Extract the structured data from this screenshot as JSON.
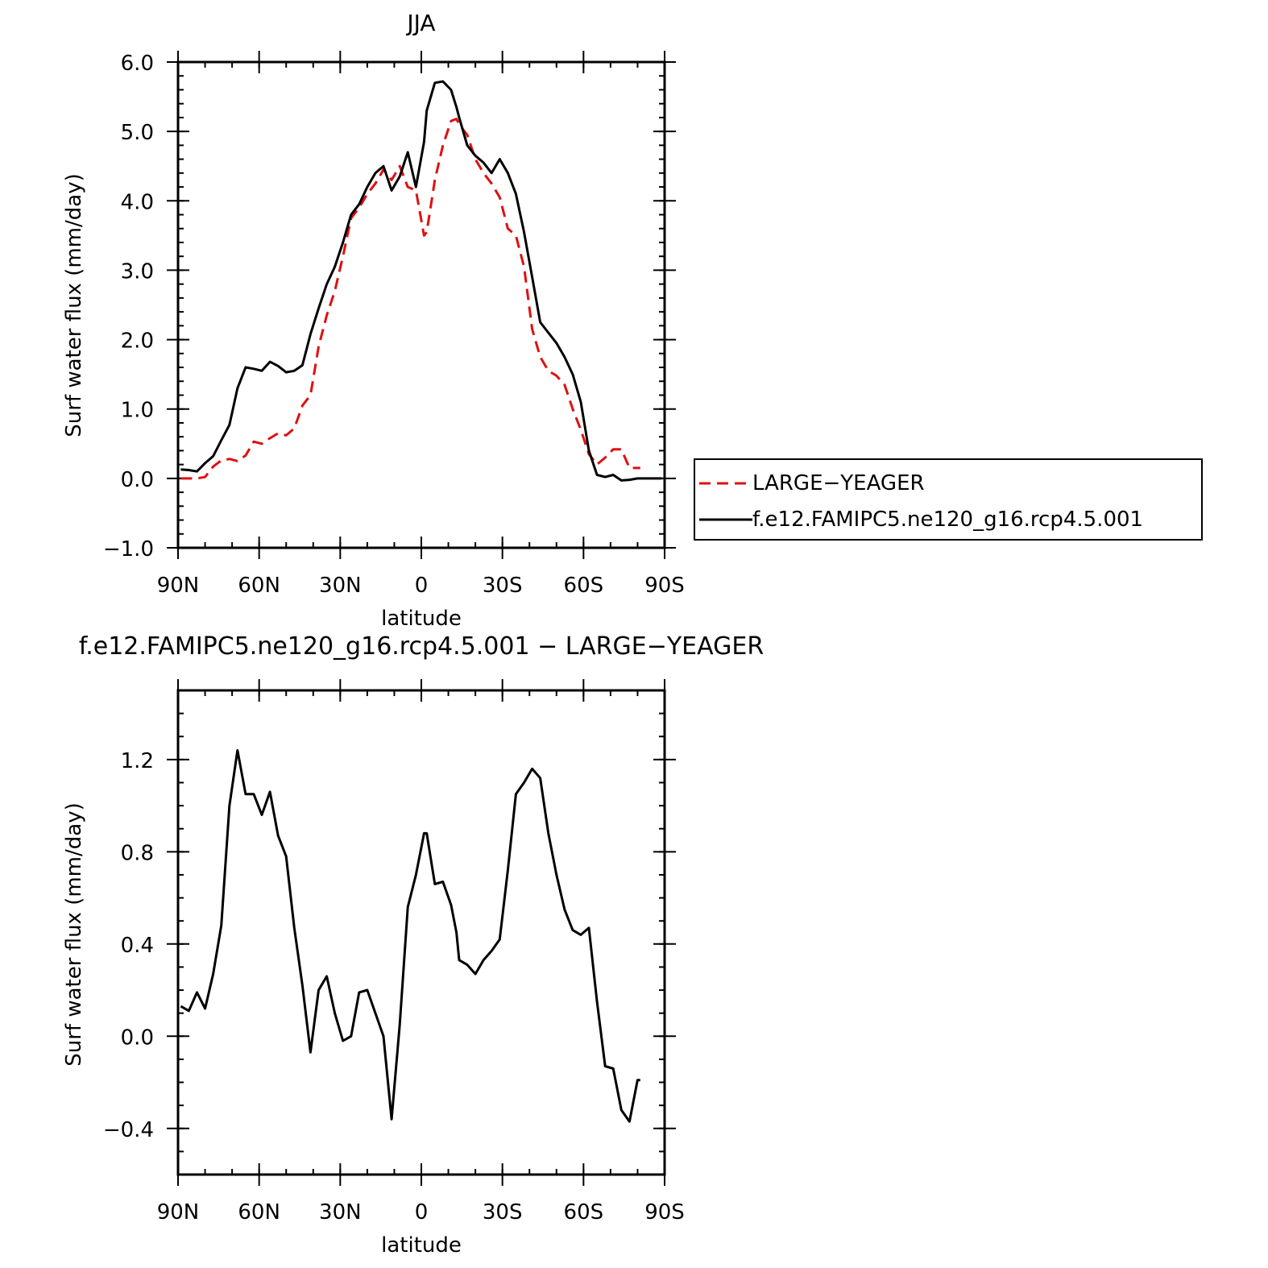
{
  "chart_data": [
    {
      "type": "line",
      "title": "JJA",
      "xlabel": "latitude",
      "ylabel": "Surf water flux (mm/day)",
      "xlim": [
        90,
        -90
      ],
      "ylim": [
        -1.0,
        6.0
      ],
      "x_ticks": [
        {
          "value": 90,
          "label": "90N"
        },
        {
          "value": 60,
          "label": "60N"
        },
        {
          "value": 30,
          "label": "30N"
        },
        {
          "value": 0,
          "label": "0"
        },
        {
          "value": -30,
          "label": "30S"
        },
        {
          "value": -60,
          "label": "60S"
        },
        {
          "value": -90,
          "label": "90S"
        }
      ],
      "y_ticks": [
        {
          "value": 6.0,
          "label": "6.0"
        },
        {
          "value": 5.0,
          "label": "5.0"
        },
        {
          "value": 4.0,
          "label": "4.0"
        },
        {
          "value": 3.0,
          "label": "3.0"
        },
        {
          "value": 2.0,
          "label": "2.0"
        },
        {
          "value": 1.0,
          "label": "1.0"
        },
        {
          "value": 0.0,
          "label": "0.0"
        },
        {
          "value": -1.0,
          "label": "−1.0"
        }
      ],
      "legend": {
        "position": "right"
      },
      "series": [
        {
          "name": "LARGE−YEAGER",
          "color": "#e01010",
          "dash": "dashed",
          "x": [
            89,
            86,
            83,
            80,
            77,
            74,
            71,
            68,
            65,
            62,
            59,
            56,
            53,
            50,
            47,
            44,
            41,
            38,
            35,
            32,
            29,
            26,
            23,
            20,
            17,
            14,
            11,
            8,
            5,
            2,
            -1,
            -2,
            -5,
            -8,
            -11,
            -13,
            -14,
            -17,
            -20,
            -23,
            -26,
            -29,
            -32,
            -35,
            -38,
            -41,
            -44,
            -47,
            -50,
            -53,
            -56,
            -59,
            -62,
            -65,
            -68,
            -71,
            -74,
            -77,
            -80,
            -81
          ],
          "y": [
            0.0,
            0.0,
            0.0,
            0.02,
            0.17,
            0.26,
            0.28,
            0.25,
            0.33,
            0.53,
            0.5,
            0.58,
            0.65,
            0.62,
            0.72,
            1.05,
            1.2,
            1.9,
            2.35,
            2.7,
            3.2,
            3.75,
            3.9,
            4.1,
            4.25,
            4.45,
            4.3,
            4.5,
            4.2,
            4.15,
            3.5,
            3.55,
            4.3,
            4.8,
            5.15,
            5.18,
            5.1,
            4.95,
            4.6,
            4.4,
            4.25,
            4.05,
            3.6,
            3.5,
            3.05,
            2.15,
            1.75,
            1.55,
            1.48,
            1.35,
            1.0,
            0.7,
            0.35,
            0.2,
            0.3,
            0.42,
            0.42,
            0.15,
            0.15,
            0.15
          ]
        },
        {
          "name": "f.e12.FAMIPC5.ne120_g16.rcp4.5.001",
          "color": "#000000",
          "dash": "solid",
          "x": [
            89,
            86,
            83,
            80,
            77,
            74,
            71,
            68,
            65,
            62,
            59,
            56,
            53,
            50,
            47,
            44,
            41,
            38,
            35,
            32,
            29,
            26,
            23,
            20,
            17,
            14,
            11,
            8,
            5,
            2,
            -1,
            -2,
            -5,
            -8,
            -11,
            -13,
            -14,
            -17,
            -20,
            -23,
            -26,
            -29,
            -32,
            -35,
            -38,
            -41,
            -44,
            -47,
            -50,
            -53,
            -56,
            -59,
            -62,
            -65,
            -68,
            -71,
            -74,
            -77,
            -80,
            -83,
            -86,
            -89
          ],
          "y": [
            0.13,
            0.12,
            0.1,
            0.22,
            0.32,
            0.55,
            0.77,
            1.3,
            1.6,
            1.58,
            1.55,
            1.68,
            1.62,
            1.53,
            1.55,
            1.63,
            2.08,
            2.45,
            2.8,
            3.05,
            3.4,
            3.8,
            3.95,
            4.2,
            4.4,
            4.5,
            4.15,
            4.35,
            4.7,
            4.2,
            4.85,
            5.3,
            5.7,
            5.72,
            5.6,
            5.35,
            5.2,
            4.8,
            4.65,
            4.55,
            4.4,
            4.6,
            4.4,
            4.1,
            3.55,
            2.9,
            2.25,
            2.1,
            1.95,
            1.75,
            1.5,
            1.1,
            0.4,
            0.05,
            0.02,
            0.05,
            -0.03,
            -0.02,
            0.0,
            0.0,
            0.0,
            0.0
          ]
        }
      ]
    },
    {
      "type": "line",
      "title": "f.e12.FAMIPC5.ne120_g16.rcp4.5.001 − LARGE−YEAGER",
      "xlabel": "latitude",
      "ylabel": "Surf water flux (mm/day)",
      "xlim": [
        90,
        -90
      ],
      "ylim": [
        -0.6,
        1.5
      ],
      "x_ticks": [
        {
          "value": 90,
          "label": "90N"
        },
        {
          "value": 60,
          "label": "60N"
        },
        {
          "value": 30,
          "label": "30N"
        },
        {
          "value": 0,
          "label": "0"
        },
        {
          "value": -30,
          "label": "30S"
        },
        {
          "value": -60,
          "label": "60S"
        },
        {
          "value": -90,
          "label": "90S"
        }
      ],
      "y_ticks": [
        {
          "value": 1.2,
          "label": "1.2"
        },
        {
          "value": 0.8,
          "label": "0.8"
        },
        {
          "value": 0.4,
          "label": "0.4"
        },
        {
          "value": 0.0,
          "label": "0.0"
        },
        {
          "value": -0.4,
          "label": "−0.4"
        }
      ],
      "series": [
        {
          "color": "#000000",
          "dash": "solid",
          "x": [
            89,
            86,
            83,
            80,
            77,
            74,
            71,
            68,
            65,
            62,
            59,
            56,
            53,
            50,
            47,
            44,
            41,
            38,
            35,
            32,
            29,
            26,
            23,
            20,
            17,
            14,
            11,
            8,
            5,
            2,
            -1,
            -2,
            -5,
            -8,
            -11,
            -13,
            -14,
            -17,
            -20,
            -23,
            -26,
            -29,
            -32,
            -35,
            -38,
            -41,
            -44,
            -47,
            -50,
            -53,
            -56,
            -59,
            -62,
            -65,
            -68,
            -71,
            -74,
            -77,
            -80,
            -81
          ],
          "y": [
            0.13,
            0.11,
            0.19,
            0.12,
            0.27,
            0.48,
            1.0,
            1.24,
            1.05,
            1.05,
            0.96,
            1.06,
            0.87,
            0.78,
            0.47,
            0.22,
            -0.07,
            0.2,
            0.26,
            0.1,
            -0.02,
            0.0,
            0.19,
            0.2,
            0.1,
            0.0,
            -0.36,
            0.05,
            0.56,
            0.7,
            0.88,
            0.88,
            0.66,
            0.67,
            0.57,
            0.45,
            0.33,
            0.31,
            0.27,
            0.33,
            0.37,
            0.42,
            0.72,
            1.05,
            1.1,
            1.16,
            1.12,
            0.88,
            0.7,
            0.55,
            0.46,
            0.44,
            0.47,
            0.15,
            -0.13,
            -0.14,
            -0.32,
            -0.37,
            -0.19,
            -0.19
          ]
        }
      ]
    }
  ]
}
